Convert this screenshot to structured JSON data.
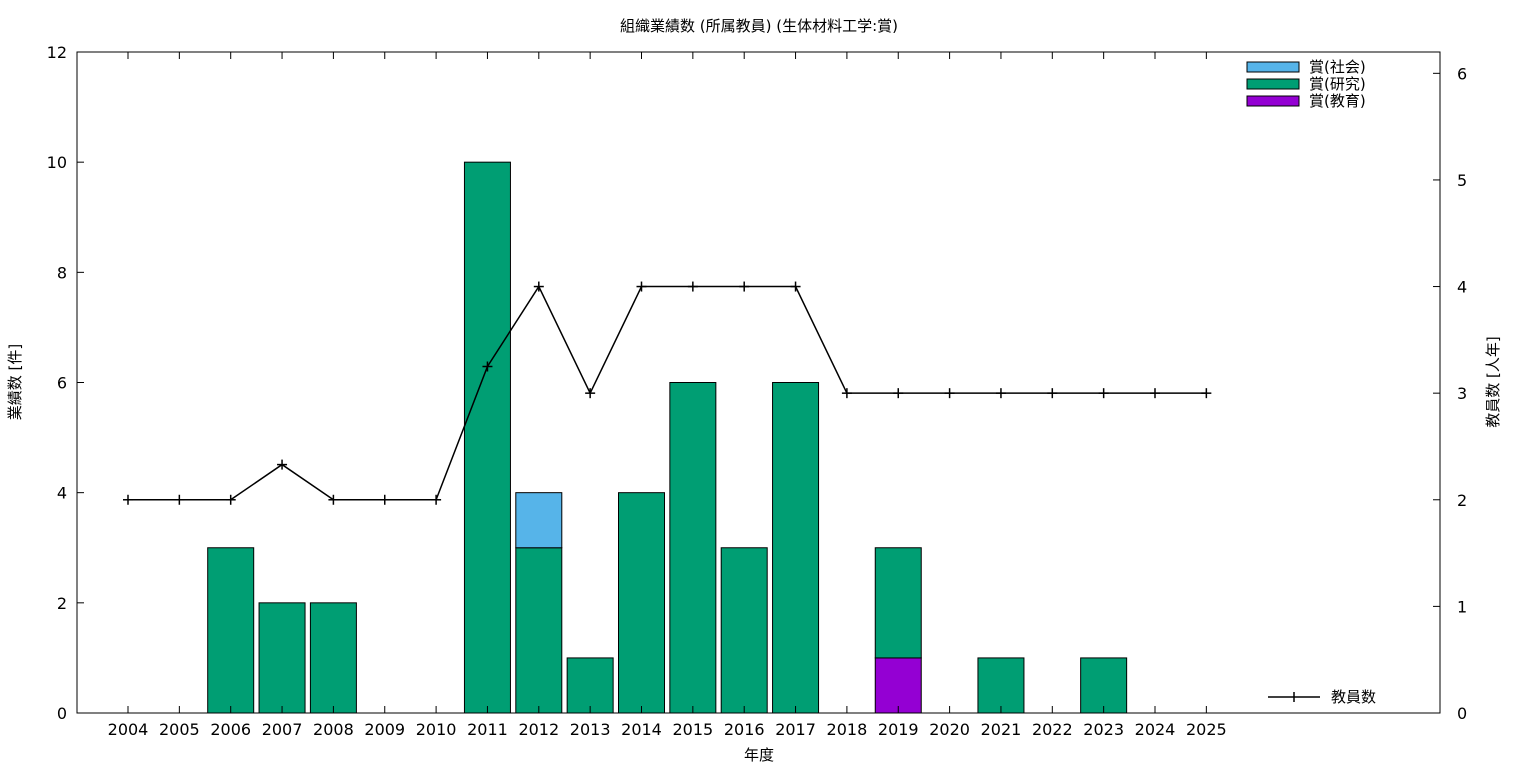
{
  "chart_data": {
    "type": "bar",
    "title": "組織業績数 (所属教員) (生体材料工学:賞)",
    "xlabel": "年度",
    "ylabel": "業績数 [件]",
    "y2label": "教員数 [人年]",
    "ylim": [
      0,
      12
    ],
    "y2lim": [
      0,
      6.2
    ],
    "yticks": [
      0,
      2,
      4,
      6,
      8,
      10,
      12
    ],
    "y2ticks": [
      0,
      1,
      2,
      3,
      4,
      5,
      6
    ],
    "categories": [
      "2004",
      "2005",
      "2006",
      "2007",
      "2008",
      "2009",
      "2010",
      "2011",
      "2012",
      "2013",
      "2014",
      "2015",
      "2016",
      "2017",
      "2018",
      "2019",
      "2020",
      "2021",
      "2022",
      "2023",
      "2024",
      "2025"
    ],
    "stacked": true,
    "series": [
      {
        "name": "賞(教育)",
        "color": "#9400d3",
        "values": [
          0,
          0,
          0,
          0,
          0,
          0,
          0,
          0,
          0,
          0,
          0,
          0,
          0,
          0,
          0,
          1,
          0,
          0,
          0,
          0,
          0,
          0
        ]
      },
      {
        "name": "賞(研究)",
        "color": "#009e73",
        "values": [
          0,
          0,
          3,
          2,
          2,
          0,
          0,
          10,
          3,
          1,
          4,
          6,
          3,
          6,
          0,
          2,
          0,
          1,
          0,
          1,
          0,
          0
        ]
      },
      {
        "name": "賞(社会)",
        "color": "#56b4e9",
        "values": [
          0,
          0,
          0,
          0,
          0,
          0,
          0,
          0,
          1,
          0,
          0,
          0,
          0,
          0,
          0,
          0,
          0,
          0,
          0,
          0,
          0,
          0
        ]
      }
    ],
    "legend_order": [
      "賞(社会)",
      "賞(研究)",
      "賞(教育)"
    ],
    "legend_position": "top-right",
    "line_series": {
      "name": "教員数",
      "axis": "y2",
      "color": "#000000",
      "values": [
        2,
        2,
        2,
        2.33,
        2,
        2,
        2,
        3.25,
        4,
        3,
        4,
        4,
        4,
        4,
        3,
        3,
        3,
        3,
        3,
        3,
        3,
        3
      ]
    },
    "line_legend_position": "bottom-right",
    "grid": false
  }
}
